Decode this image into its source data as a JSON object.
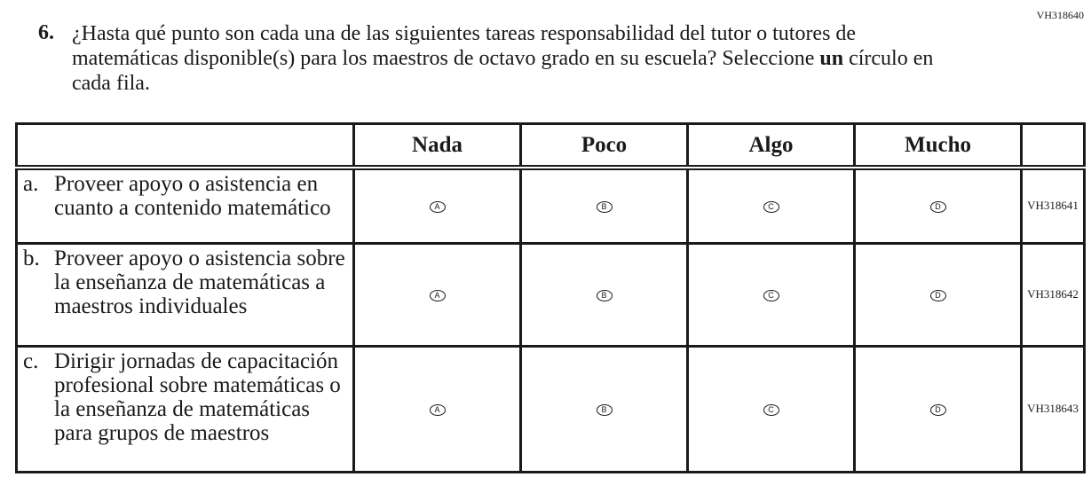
{
  "question_id": "VH318640",
  "question_number": "6.",
  "question_text_before": "¿Hasta qué punto son cada una de las siguientes tareas responsabilidad del tutor o tutores de matemáticas disponible(s) para los maestros de octavo grado en su escuela? Seleccione ",
  "question_text_bold": "un",
  "question_text_after": " círculo en cada fila.",
  "columns": [
    "Nada",
    "Poco",
    "Algo",
    "Mucho"
  ],
  "rows": [
    {
      "letter": "a.",
      "text": "Proveer apoyo o asistencia en cuanto a contenido matemático",
      "code": "VH318641",
      "options": [
        "A",
        "B",
        "C",
        "D"
      ]
    },
    {
      "letter": "b.",
      "text": "Proveer apoyo o asistencia sobre la enseñanza de matemáticas a maestros individuales",
      "code": "VH318642",
      "options": [
        "A",
        "B",
        "C",
        "D"
      ]
    },
    {
      "letter": "c.",
      "text": "Dirigir jornadas de capacitación profesional sobre matemáticas o la enseñanza de matemáticas para grupos de maestros",
      "code": "VH318643",
      "options": [
        "A",
        "B",
        "C",
        "D"
      ]
    }
  ]
}
